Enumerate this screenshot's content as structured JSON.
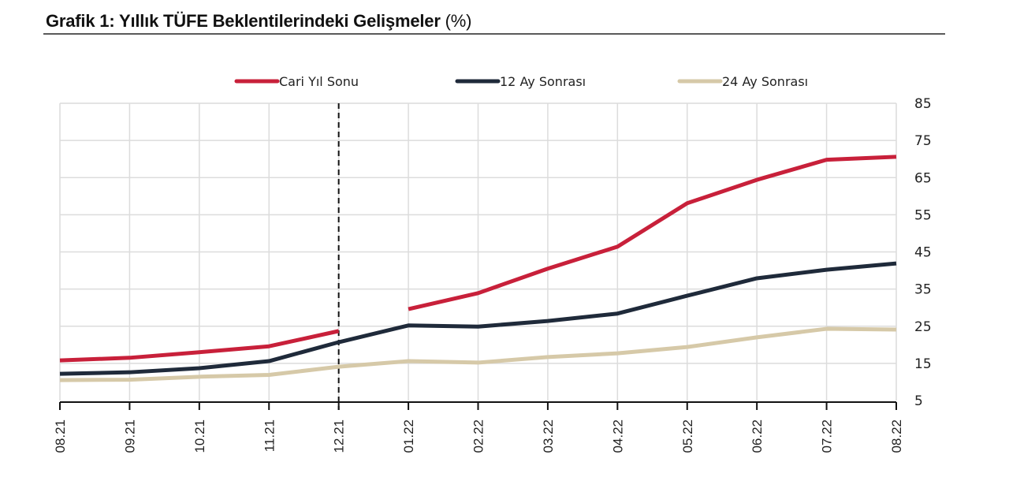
{
  "header": {
    "title_bold": "Grafik 1: Yıllık TÜFE Beklentilerindeki Gelişmeler",
    "title_unit": "(%)"
  },
  "chart_data": {
    "type": "line",
    "title": "Grafik 1: Yıllık TÜFE Beklentilerindeki Gelişmeler (%)",
    "xlabel": "",
    "ylabel": "",
    "categories": [
      "08.21",
      "09.21",
      "10.21",
      "11.21",
      "12.21",
      "01.22",
      "02.22",
      "03.22",
      "04.22",
      "05.22",
      "06.22",
      "07.22",
      "08.22"
    ],
    "ylim": [
      5,
      85
    ],
    "yticks": [
      85,
      75,
      65,
      55,
      45,
      35,
      25,
      15,
      5
    ],
    "y_axis_position": "right",
    "grid": true,
    "legend_position": "top",
    "annotations": [
      {
        "type": "vertical-dashed-line",
        "at": "12.21"
      }
    ],
    "series": [
      {
        "name": "Cari Yıl Sonu",
        "color": "#c8203a",
        "values": [
          15.8,
          16.5,
          18.0,
          19.6,
          23.7,
          29.6,
          33.9,
          40.5,
          46.4,
          58.1,
          64.4,
          69.8,
          70.6
        ],
        "break_after_index": 4
      },
      {
        "name": "12 Ay Sonrası",
        "color": "#1f2a3a",
        "values": [
          12.2,
          12.6,
          13.7,
          15.6,
          20.7,
          25.2,
          24.9,
          26.4,
          28.4,
          33.2,
          37.9,
          40.2,
          41.9
        ]
      },
      {
        "name": "24 Ay Sonrası",
        "color": "#d6c9a8",
        "values": [
          10.5,
          10.6,
          11.4,
          11.9,
          14.1,
          15.6,
          15.2,
          16.7,
          17.7,
          19.4,
          22.0,
          24.3,
          24.1
        ]
      }
    ]
  }
}
